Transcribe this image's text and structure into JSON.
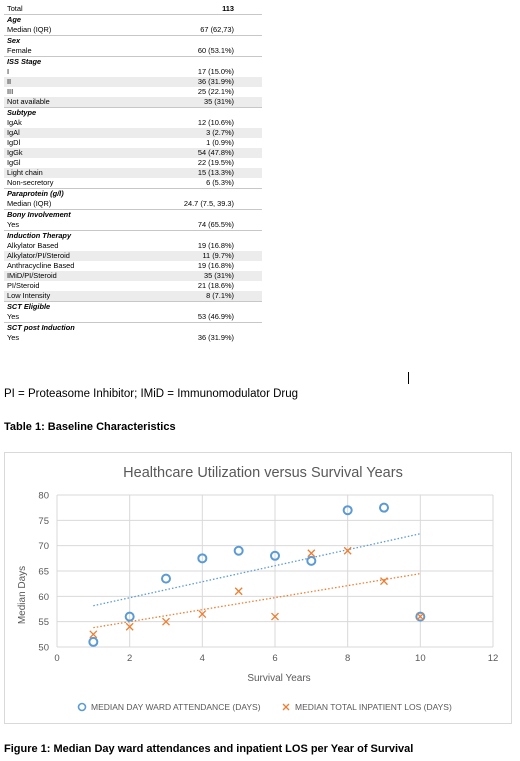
{
  "table": {
    "rows": [
      {
        "type": "total",
        "label": "Total",
        "value": "113"
      },
      {
        "type": "section",
        "label": "Age"
      },
      {
        "type": "row",
        "label": "Median (IQR)",
        "value": "67 (62,73)"
      },
      {
        "type": "section",
        "label": "Sex"
      },
      {
        "type": "row",
        "label": "Female",
        "value": "60 (53.1%)"
      },
      {
        "type": "section",
        "label": "ISS Stage"
      },
      {
        "type": "row",
        "label": "I",
        "value": "17 (15.0%)"
      },
      {
        "type": "row",
        "label": "II",
        "value": "36 (31.9%)"
      },
      {
        "type": "row",
        "label": "III",
        "value": "25 (22.1%)"
      },
      {
        "type": "row",
        "label": "Not available",
        "value": "35 (31%)"
      },
      {
        "type": "section",
        "label": "Subtype"
      },
      {
        "type": "row",
        "label": "IgAk",
        "value": "12 (10.6%)"
      },
      {
        "type": "row",
        "label": "IgAl",
        "value": "3 (2.7%)"
      },
      {
        "type": "row",
        "label": "IgDl",
        "value": "1 (0.9%)"
      },
      {
        "type": "row",
        "label": "IgGk",
        "value": "54 (47.8%)"
      },
      {
        "type": "row",
        "label": "IgGl",
        "value": "22 (19.5%)"
      },
      {
        "type": "row",
        "label": "Light chain",
        "value": "15 (13.3%)"
      },
      {
        "type": "row",
        "label": "Non-secretory",
        "value": "6 (5.3%)"
      },
      {
        "type": "section",
        "label": "Paraprotein (g/l)"
      },
      {
        "type": "row",
        "label": "Median (IQR)",
        "value": "24.7 (7.5, 39.3)"
      },
      {
        "type": "section",
        "label": "Bony Involvement"
      },
      {
        "type": "row",
        "label": "Yes",
        "value": "74 (65.5%)"
      },
      {
        "type": "section",
        "label": "Induction Therapy"
      },
      {
        "type": "row",
        "label": "Alkylator Based",
        "value": "19 (16.8%)"
      },
      {
        "type": "row",
        "label": "Alkylator/PI/Steroid",
        "value": "11 (9.7%)"
      },
      {
        "type": "row",
        "label": "Anthracycline Based",
        "value": "19 (16.8%)"
      },
      {
        "type": "row",
        "label": "IMiD/PI/Steroid",
        "value": "35 (31%)"
      },
      {
        "type": "row",
        "label": "PI/Steroid",
        "value": "21 (18.6%)"
      },
      {
        "type": "row",
        "label": "Low Intensity",
        "value": "8 (7.1%)"
      },
      {
        "type": "section",
        "label": "SCT Eligible"
      },
      {
        "type": "row",
        "label": "Yes",
        "value": "53 (46.9%)"
      },
      {
        "type": "section",
        "label": "SCT post Induction"
      },
      {
        "type": "row",
        "label": "Yes",
        "value": "36 (31.9%)"
      }
    ]
  },
  "footnote": "PI = Proteasome Inhibitor; IMiD = Immunomodulator Drug",
  "table_caption": "Table 1: Baseline Characteristics",
  "figure_caption": "Figure 1: Median Day ward attendances and inpatient LOS per Year of Survival",
  "chart_data": {
    "type": "scatter",
    "title": "Healthcare Utilization versus Survival Years",
    "xlabel": "Survival Years",
    "ylabel": "Median Days",
    "xlim": [
      0,
      12
    ],
    "ylim": [
      50,
      80
    ],
    "xticks": [
      0,
      2,
      4,
      6,
      8,
      10,
      12
    ],
    "yticks": [
      50,
      55,
      60,
      65,
      70,
      75,
      80
    ],
    "grid": true,
    "legend": "bottom",
    "trendlines": "linear, dotted",
    "series": [
      {
        "name": "MEDIAN DAY WARD ATTENDANCE (DAYS)",
        "marker": "circle",
        "color": "#5b9bd5",
        "x": [
          1,
          2,
          3,
          4,
          5,
          6,
          7,
          8,
          9,
          10
        ],
        "y": [
          51,
          56,
          63.5,
          67.5,
          69,
          68,
          67,
          77,
          77.5,
          56
        ]
      },
      {
        "name": "MEDIAN TOTAL INPATIENT LOS (DAYS)",
        "marker": "x",
        "color": "#ed7d31",
        "x": [
          1,
          2,
          3,
          4,
          5,
          6,
          7,
          8,
          9,
          10
        ],
        "y": [
          52.5,
          54,
          55,
          56.5,
          61,
          56,
          68.5,
          69,
          63,
          56
        ]
      }
    ]
  }
}
